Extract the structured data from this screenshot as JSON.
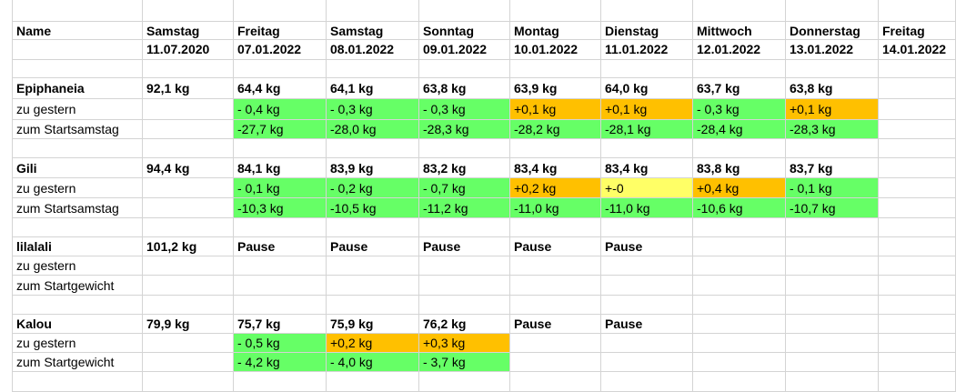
{
  "colors": {
    "green": "#66ff66",
    "orange": "#ffc000",
    "yellow": "#ffff66",
    "gridline": "#d4d4d4"
  },
  "rows": [
    {
      "cells": []
    },
    {
      "kind": "header",
      "cells": [
        {
          "text": "Name",
          "bold": true
        },
        {
          "text": "Samstag",
          "bold": true
        },
        {
          "text": "Freitag",
          "bold": true
        },
        {
          "text": "Samstag",
          "bold": true
        },
        {
          "text": "Sonntag",
          "bold": true
        },
        {
          "text": "Montag",
          "bold": true
        },
        {
          "text": "Dienstag",
          "bold": true
        },
        {
          "text": "Mittwoch",
          "bold": true
        },
        {
          "text": "Donnerstag",
          "bold": true
        },
        {
          "text": "Freitag",
          "bold": true
        }
      ]
    },
    {
      "kind": "header",
      "cells": [
        {
          "text": ""
        },
        {
          "text": "11.07.2020",
          "bold": true
        },
        {
          "text": "07.01.2022",
          "bold": true
        },
        {
          "text": "08.01.2022",
          "bold": true
        },
        {
          "text": "09.01.2022",
          "bold": true
        },
        {
          "text": "10.01.2022",
          "bold": true
        },
        {
          "text": "11.01.2022",
          "bold": true
        },
        {
          "text": "12.01.2022",
          "bold": true
        },
        {
          "text": "13.01.2022",
          "bold": true
        },
        {
          "text": "14.01.2022",
          "bold": true
        }
      ]
    },
    {
      "cells": []
    },
    {
      "cells": [
        {
          "text": "Epiphaneia",
          "bold": true
        },
        {
          "text": "92,1 kg",
          "bold": true
        },
        {
          "text": "64,4 kg",
          "bold": true
        },
        {
          "text": "64,1 kg",
          "bold": true
        },
        {
          "text": "63,8 kg",
          "bold": true
        },
        {
          "text": "63,9 kg",
          "bold": true
        },
        {
          "text": "64,0 kg",
          "bold": true
        },
        {
          "text": "63,7 kg",
          "bold": true
        },
        {
          "text": "63,8 kg",
          "bold": true
        }
      ]
    },
    {
      "cells": [
        {
          "text": "zu gestern"
        },
        {
          "text": ""
        },
        {
          "text": "- 0,4 kg",
          "fill": "green"
        },
        {
          "text": "- 0,3 kg",
          "fill": "green"
        },
        {
          "text": "- 0,3 kg",
          "fill": "green"
        },
        {
          "text": "+0,1 kg",
          "fill": "orange"
        },
        {
          "text": "+0,1 kg",
          "fill": "orange"
        },
        {
          "text": "- 0,3 kg",
          "fill": "green"
        },
        {
          "text": "+0,1 kg",
          "fill": "orange"
        }
      ]
    },
    {
      "cells": [
        {
          "text": "zum Startsamstag"
        },
        {
          "text": ""
        },
        {
          "text": "-27,7 kg",
          "fill": "green"
        },
        {
          "text": "-28,0 kg",
          "fill": "green"
        },
        {
          "text": "-28,3 kg",
          "fill": "green"
        },
        {
          "text": "-28,2 kg",
          "fill": "green"
        },
        {
          "text": "-28,1 kg",
          "fill": "green"
        },
        {
          "text": "-28,4 kg",
          "fill": "green"
        },
        {
          "text": "-28,3 kg",
          "fill": "green"
        }
      ]
    },
    {
      "cells": []
    },
    {
      "cells": [
        {
          "text": "Gili",
          "bold": true
        },
        {
          "text": "94,4 kg",
          "bold": true
        },
        {
          "text": "84,1 kg",
          "bold": true
        },
        {
          "text": "83,9 kg",
          "bold": true
        },
        {
          "text": "83,2 kg",
          "bold": true
        },
        {
          "text": "83,4 kg",
          "bold": true
        },
        {
          "text": "83,4 kg",
          "bold": true
        },
        {
          "text": "83,8 kg",
          "bold": true
        },
        {
          "text": "83,7 kg",
          "bold": true
        }
      ]
    },
    {
      "cells": [
        {
          "text": "zu gestern"
        },
        {
          "text": ""
        },
        {
          "text": "- 0,1 kg",
          "fill": "green"
        },
        {
          "text": "- 0,2 kg",
          "fill": "green"
        },
        {
          "text": "- 0,7 kg",
          "fill": "green"
        },
        {
          "text": "+0,2 kg",
          "fill": "orange"
        },
        {
          "text": "+-0",
          "fill": "yellow"
        },
        {
          "text": "+0,4 kg",
          "fill": "orange"
        },
        {
          "text": "- 0,1 kg",
          "fill": "green"
        }
      ]
    },
    {
      "cells": [
        {
          "text": "zum Startsamstag"
        },
        {
          "text": ""
        },
        {
          "text": "-10,3 kg",
          "fill": "green"
        },
        {
          "text": "-10,5 kg",
          "fill": "green"
        },
        {
          "text": "-11,2 kg",
          "fill": "green"
        },
        {
          "text": "-11,0 kg",
          "fill": "green"
        },
        {
          "text": "-11,0 kg",
          "fill": "green"
        },
        {
          "text": "-10,6 kg",
          "fill": "green"
        },
        {
          "text": "-10,7 kg",
          "fill": "green"
        }
      ]
    },
    {
      "cells": []
    },
    {
      "cells": [
        {
          "text": "lilalali",
          "bold": true
        },
        {
          "text": "101,2 kg",
          "bold": true
        },
        {
          "text": "Pause",
          "bold": true
        },
        {
          "text": "Pause",
          "bold": true
        },
        {
          "text": "Pause",
          "bold": true
        },
        {
          "text": "Pause",
          "bold": true
        },
        {
          "text": "Pause",
          "bold": true
        }
      ]
    },
    {
      "cells": [
        {
          "text": "zu gestern"
        }
      ]
    },
    {
      "cells": [
        {
          "text": "zum Startgewicht"
        }
      ]
    },
    {
      "cells": []
    },
    {
      "cells": [
        {
          "text": "Kalou",
          "bold": true
        },
        {
          "text": "79,9 kg",
          "bold": true
        },
        {
          "text": "75,7 kg",
          "bold": true
        },
        {
          "text": "75,9 kg",
          "bold": true
        },
        {
          "text": "76,2 kg",
          "bold": true
        },
        {
          "text": "Pause",
          "bold": true
        },
        {
          "text": "Pause",
          "bold": true
        }
      ]
    },
    {
      "cells": [
        {
          "text": "zu gestern"
        },
        {
          "text": ""
        },
        {
          "text": "- 0,5 kg",
          "fill": "green"
        },
        {
          "text": "+0,2 kg",
          "fill": "orange"
        },
        {
          "text": "+0,3 kg",
          "fill": "orange"
        }
      ]
    },
    {
      "cells": [
        {
          "text": "zum Startgewicht"
        },
        {
          "text": ""
        },
        {
          "text": "- 4,2 kg",
          "fill": "green"
        },
        {
          "text": "- 4,0 kg",
          "fill": "green"
        },
        {
          "text": "- 3,7 kg",
          "fill": "green"
        }
      ]
    },
    {
      "cells": []
    }
  ]
}
